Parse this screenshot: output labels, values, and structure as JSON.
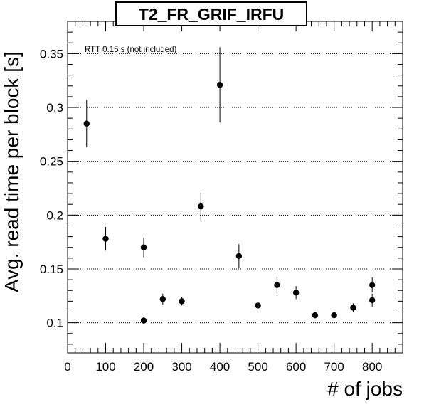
{
  "chart_data": {
    "type": "scatter",
    "title": "T2_FR_GRIF_IRFU",
    "xlabel": "# of jobs",
    "ylabel": "Avg. read time per block [s]",
    "annotation": "RTT 0.15 s (not included)",
    "xlim": [
      0,
      880
    ],
    "ylim": [
      0.072,
      0.38
    ],
    "x_ticks": [
      0,
      100,
      200,
      300,
      400,
      500,
      600,
      700,
      800
    ],
    "y_ticks": [
      0.1,
      0.15,
      0.2,
      0.25,
      0.3,
      0.35
    ],
    "x_tick_labels": [
      "0",
      "100",
      "200",
      "300",
      "400",
      "500",
      "600",
      "700",
      "800"
    ],
    "y_tick_labels": [
      "0.1",
      "0.15",
      "0.2",
      "0.25",
      "0.3",
      "0.35"
    ],
    "grid": "horizontal dotted at y ticks",
    "points": [
      {
        "x": 50,
        "y": 0.285,
        "err": 0.022
      },
      {
        "x": 100,
        "y": 0.178,
        "err": 0.011
      },
      {
        "x": 200,
        "y": 0.17,
        "err": 0.009
      },
      {
        "x": 200,
        "y": 0.102,
        "err": 0.003
      },
      {
        "x": 250,
        "y": 0.122,
        "err": 0.005
      },
      {
        "x": 300,
        "y": 0.12,
        "err": 0.004
      },
      {
        "x": 350,
        "y": 0.208,
        "err": 0.013
      },
      {
        "x": 400,
        "y": 0.321,
        "err": 0.035
      },
      {
        "x": 450,
        "y": 0.162,
        "err": 0.011
      },
      {
        "x": 500,
        "y": 0.116,
        "err": 0.003
      },
      {
        "x": 550,
        "y": 0.135,
        "err": 0.008
      },
      {
        "x": 600,
        "y": 0.128,
        "err": 0.006
      },
      {
        "x": 650,
        "y": 0.107,
        "err": 0.003
      },
      {
        "x": 700,
        "y": 0.107,
        "err": 0.003
      },
      {
        "x": 750,
        "y": 0.114,
        "err": 0.004
      },
      {
        "x": 800,
        "y": 0.121,
        "err": 0.006
      },
      {
        "x": 800,
        "y": 0.135,
        "err": 0.007
      }
    ],
    "marker_color": "#000000"
  }
}
